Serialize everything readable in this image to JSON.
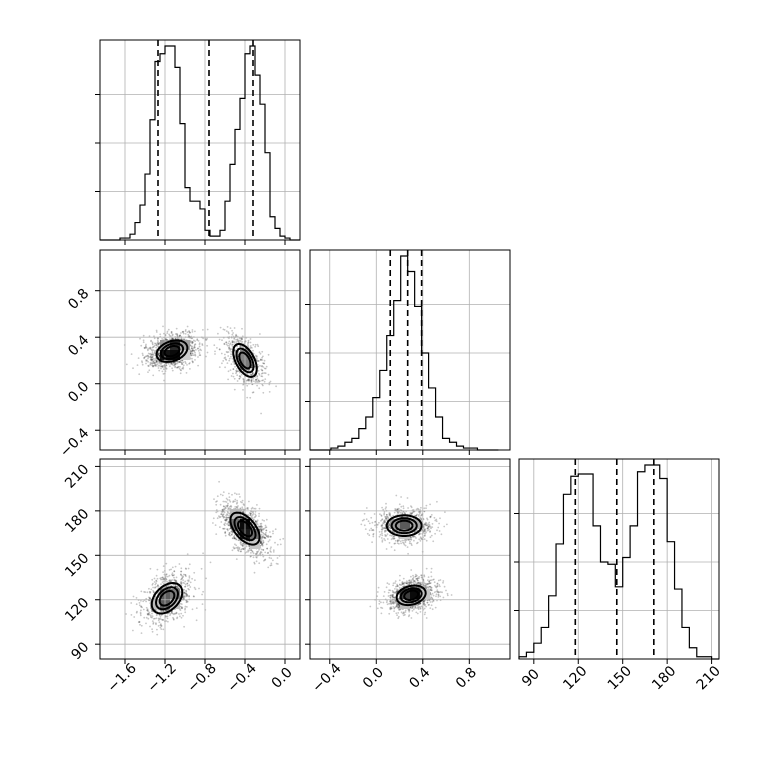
{
  "chart_data": {
    "type": "corner",
    "grid": true,
    "params": [
      {
        "range": [
          -1.85,
          0.15
        ],
        "ticks": [
          -1.6,
          -1.2,
          -0.8,
          -0.4,
          0.0
        ],
        "tick_labels": [
          "−1.6",
          "−1.2",
          "−0.8",
          "−0.4",
          "0.0"
        ],
        "quantiles": [
          -1.27,
          -0.76,
          -0.32
        ],
        "histogram": {
          "edges": [
            -1.85,
            -1.8,
            -1.75,
            -1.7,
            -1.65,
            -1.6,
            -1.55,
            -1.5,
            -1.45,
            -1.4,
            -1.35,
            -1.3,
            -1.25,
            -1.2,
            -1.15,
            -1.1,
            -1.05,
            -1.0,
            -0.95,
            -0.9,
            -0.85,
            -0.8,
            -0.75,
            -0.7,
            -0.65,
            -0.6,
            -0.55,
            -0.5,
            -0.45,
            -0.4,
            -0.35,
            -0.3,
            -0.25,
            -0.2,
            -0.15,
            -0.1,
            -0.05,
            0.0,
            0.05,
            0.1,
            0.15
          ],
          "counts": [
            0,
            0,
            0,
            0,
            1,
            1,
            3,
            9,
            18,
            34,
            62,
            92,
            96,
            100,
            100,
            89,
            60,
            27,
            20,
            20,
            16,
            5,
            2,
            2,
            5,
            20,
            39,
            57,
            73,
            96,
            100,
            85,
            70,
            45,
            12,
            6,
            2,
            1,
            0,
            0
          ]
        }
      },
      {
        "range": [
          -0.57,
          1.15
        ],
        "ticks": [
          -0.4,
          0.0,
          0.4,
          0.8
        ],
        "tick_labels": [
          "−0.4",
          "0.0",
          "0.4",
          "0.8"
        ],
        "quantiles": [
          0.12,
          0.27,
          0.39
        ],
        "histogram": {
          "edges": [
            -0.57,
            -0.51,
            -0.45,
            -0.39,
            -0.33,
            -0.27,
            -0.21,
            -0.15,
            -0.09,
            -0.03,
            0.03,
            0.09,
            0.15,
            0.21,
            0.27,
            0.33,
            0.39,
            0.45,
            0.51,
            0.57,
            0.63,
            0.69,
            0.75,
            0.81,
            0.87,
            0.93,
            0.99,
            1.05
          ],
          "counts": [
            0,
            0,
            0,
            1,
            2,
            4,
            6,
            11,
            17,
            27,
            41,
            59,
            77,
            100,
            92,
            74,
            50,
            32,
            17,
            6,
            4,
            2,
            1,
            1,
            0,
            0,
            0
          ]
        }
      },
      {
        "range": [
          80,
          215
        ],
        "ticks": [
          90,
          120,
          150,
          180,
          210
        ],
        "tick_labels": [
          "90",
          "120",
          "150",
          "180",
          "210"
        ],
        "quantiles": [
          118,
          146,
          171
        ],
        "histogram": {
          "edges": [
            80,
            85,
            90,
            95,
            100,
            105,
            110,
            115,
            120,
            125,
            130,
            135,
            140,
            145,
            150,
            155,
            160,
            165,
            170,
            175,
            180,
            185,
            190,
            195,
            200,
            205,
            210,
            215
          ],
          "counts": [
            1,
            3,
            7,
            14,
            28,
            51,
            73,
            81,
            82,
            82,
            59,
            43,
            42,
            32,
            45,
            59,
            83,
            86,
            86,
            80,
            52,
            31,
            14,
            5,
            1,
            1,
            0
          ]
        }
      }
    ],
    "pairs": [
      {
        "x_param": 0,
        "y_param": 1,
        "density_peak": [
          -1.18,
          0.28
        ],
        "modes": [
          {
            "center": [
              -1.13,
              0.28
            ],
            "semi_axes": [
              0.32,
              0.17
            ],
            "angle_deg": 20,
            "weight": 1.0
          },
          {
            "center": [
              -0.4,
              0.2
            ],
            "semi_axes": [
              0.36,
              0.16
            ],
            "angle_deg": -62,
            "weight": 0.55
          }
        ]
      },
      {
        "x_param": 0,
        "y_param": 2,
        "density_peak": [
          -0.4,
          170
        ],
        "modes": [
          {
            "center": [
              -1.18,
              121
            ],
            "semi_axes": [
              0.36,
              16
            ],
            "angle_deg": 45,
            "weight": 0.75
          },
          {
            "center": [
              -0.4,
              168
            ],
            "semi_axes": [
              0.38,
              14
            ],
            "angle_deg": -50,
            "weight": 1.0
          }
        ]
      },
      {
        "x_param": 1,
        "y_param": 2,
        "density_peak": [
          0.35,
          120
        ],
        "modes": [
          {
            "center": [
              0.24,
              170
            ],
            "semi_axes": [
              0.3,
              14
            ],
            "angle_deg": 0,
            "weight": 0.7
          },
          {
            "center": [
              0.3,
              123
            ],
            "semi_axes": [
              0.16,
              20
            ],
            "angle_deg": -75,
            "weight": 1.0
          }
        ]
      }
    ]
  }
}
